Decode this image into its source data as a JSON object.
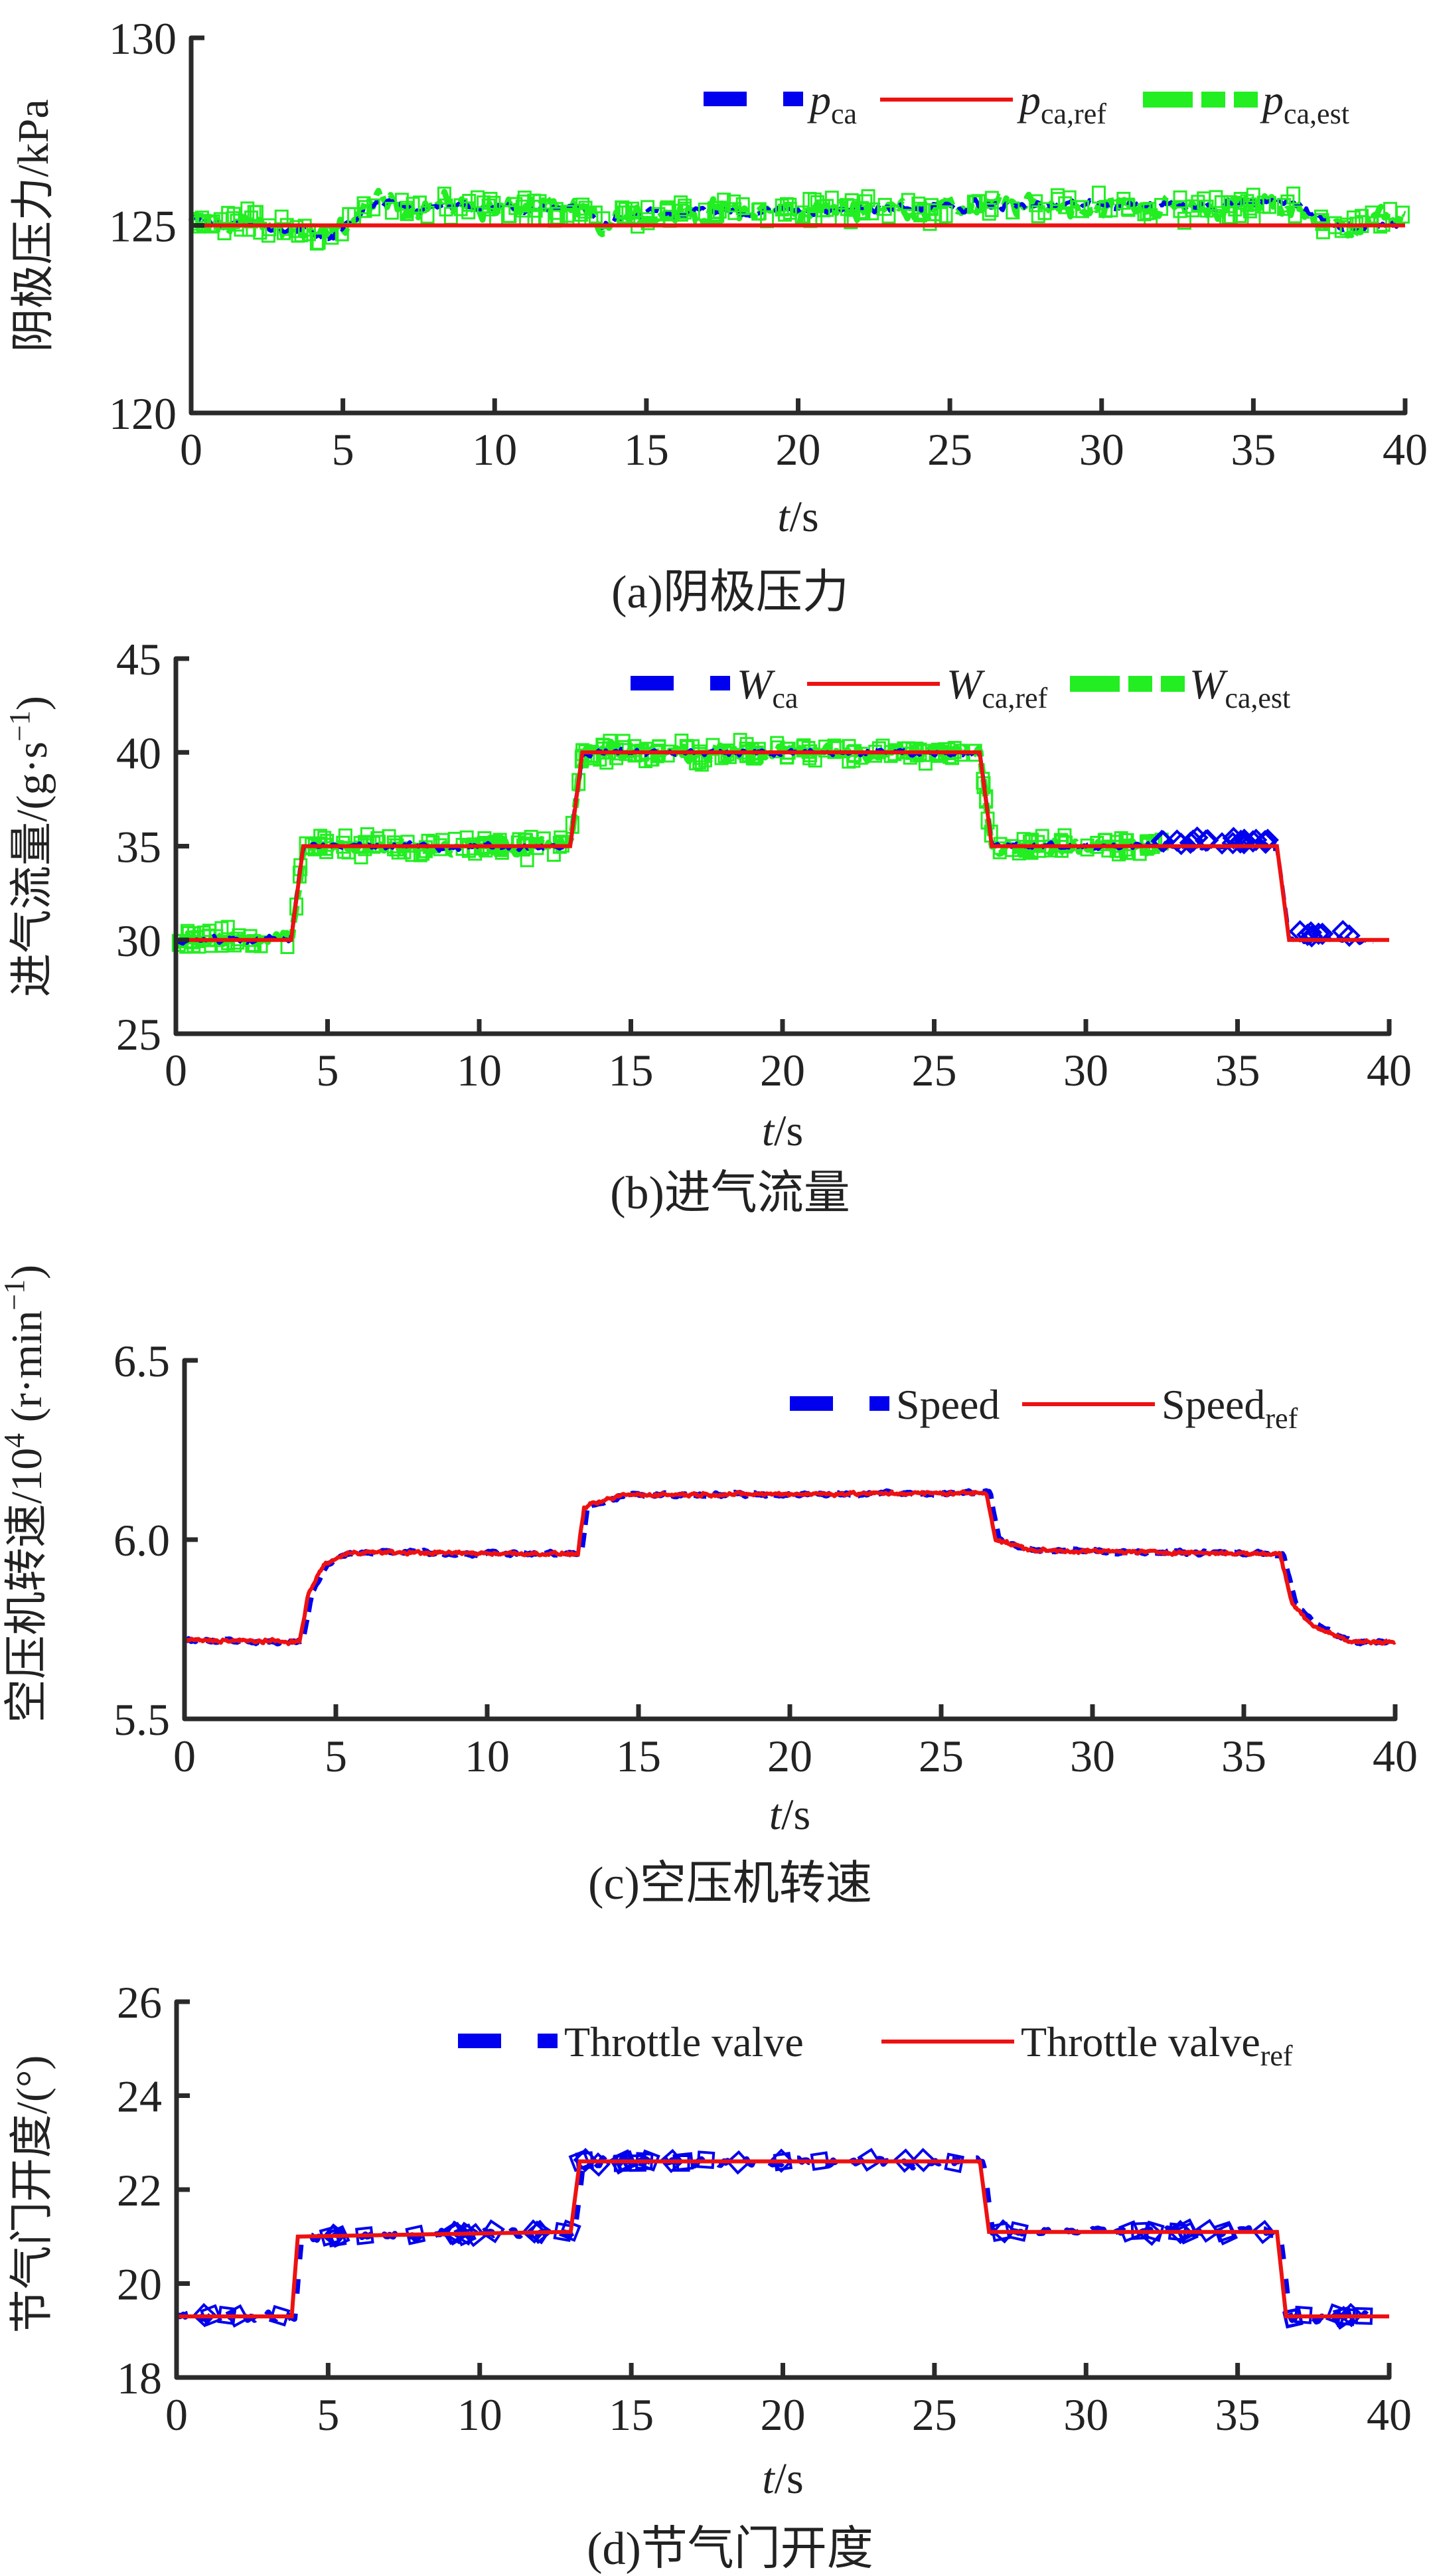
{
  "colors": {
    "measured": "#0000ee",
    "reference": "#ee1111",
    "estimated": "#22ee22",
    "axis": "#2a2a2a"
  },
  "chart_data": [
    {
      "type": "line",
      "id": "a",
      "caption": "(a)阴极压力",
      "ylabel": "阴极压力/kPa",
      "xlabel_italic": "t",
      "xlabel_rest": "/s",
      "xlim": [
        0,
        40
      ],
      "ylim": [
        120,
        130
      ],
      "xticks": [
        "0",
        "5",
        "10",
        "15",
        "20",
        "25",
        "30",
        "35",
        "40"
      ],
      "yticks": [
        "120",
        "125",
        "130"
      ],
      "yticks_values": [
        120,
        125,
        130
      ],
      "legend_position": "top-right",
      "legend": [
        {
          "key": "measured",
          "style": "dashed-thick",
          "main": "p",
          "sub": "ca",
          "italic": true
        },
        {
          "key": "reference",
          "style": "solid",
          "main": "p",
          "sub": "ca,ref",
          "italic": true
        },
        {
          "key": "estimated",
          "style": "dashed-thick",
          "main": "p",
          "sub": "ca,est",
          "italic": true
        }
      ],
      "reference_steps": [
        [
          0,
          125
        ],
        [
          40,
          125
        ]
      ],
      "measured_levels": [
        [
          0,
          125.1
        ],
        [
          3.5,
          124.9
        ],
        [
          4.5,
          124.6
        ],
        [
          6,
          125.5
        ],
        [
          13,
          125.4
        ],
        [
          13.5,
          124.9
        ],
        [
          14,
          125.3
        ],
        [
          26,
          125.5
        ],
        [
          36.5,
          125.6
        ],
        [
          37.5,
          125.0
        ],
        [
          40,
          125.0
        ]
      ],
      "estimated_levels": [
        [
          0,
          125.1
        ],
        [
          3.5,
          124.9
        ],
        [
          4.5,
          124.6
        ],
        [
          6,
          125.6
        ],
        [
          13,
          125.4
        ],
        [
          13.5,
          124.9
        ],
        [
          14,
          125.3
        ],
        [
          26,
          125.5
        ],
        [
          36.5,
          125.5
        ],
        [
          37.5,
          124.9
        ],
        [
          40,
          125.3
        ]
      ],
      "noise": {
        "measured": 0.25,
        "estimated": 0.5
      }
    },
    {
      "type": "line",
      "id": "b",
      "caption": "(b)进气流量",
      "ylabel": "进气流量/(g·s",
      "ylabel_sup": "−1",
      "ylabel_close": ")",
      "xlabel_italic": "t",
      "xlabel_rest": "/s",
      "xlim": [
        0,
        40
      ],
      "ylim": [
        25,
        45
      ],
      "xticks": [
        "0",
        "5",
        "10",
        "15",
        "20",
        "25",
        "30",
        "35",
        "40"
      ],
      "yticks": [
        "25",
        "30",
        "35",
        "40",
        "45"
      ],
      "yticks_values": [
        25,
        30,
        35,
        40,
        45
      ],
      "legend_position": "top-right",
      "legend": [
        {
          "key": "measured",
          "style": "dashed-thick",
          "main": "W",
          "sub": "ca",
          "italic": true
        },
        {
          "key": "reference",
          "style": "solid",
          "main": "W",
          "sub": "ca,ref",
          "italic": true
        },
        {
          "key": "estimated",
          "style": "dashed-thick",
          "main": "W",
          "sub": "ca,est",
          "italic": true
        }
      ],
      "reference_steps": [
        [
          0,
          30
        ],
        [
          3.8,
          30
        ],
        [
          4.2,
          35
        ],
        [
          13.0,
          35
        ],
        [
          13.4,
          40
        ],
        [
          26.5,
          40
        ],
        [
          26.9,
          35
        ],
        [
          36.3,
          35
        ],
        [
          36.7,
          30
        ],
        [
          40,
          30
        ]
      ],
      "measured_range": [
        0,
        39.5
      ],
      "estimated_range": [
        0,
        32.5
      ],
      "noise": {
        "measured": 0.35,
        "estimated": 0.7
      }
    },
    {
      "type": "line",
      "id": "c",
      "caption": "(c)空压机转速",
      "ylabel": "空压机转速/10",
      "ylabel_sup": "4",
      "ylabel_rest": " (r·min",
      "ylabel_sup2": "−1",
      "ylabel_close": ")",
      "xlabel_italic": "t",
      "xlabel_rest": "/s",
      "xlim": [
        0,
        40
      ],
      "ylim": [
        5.5,
        6.5
      ],
      "xticks": [
        "0",
        "5",
        "10",
        "15",
        "20",
        "25",
        "30",
        "35",
        "40"
      ],
      "yticks": [
        "5.5",
        "6.0",
        "6.5"
      ],
      "yticks_values": [
        5.5,
        6.0,
        6.5
      ],
      "legend_position": "top-right",
      "legend": [
        {
          "key": "measured",
          "style": "dashed-thick",
          "main": "Speed",
          "sub": "",
          "italic": false
        },
        {
          "key": "reference",
          "style": "solid",
          "main": "Speed",
          "sub": "ref",
          "italic": false
        }
      ],
      "reference_curve": [
        [
          0,
          5.72
        ],
        [
          3.8,
          5.715
        ],
        [
          4.1,
          5.85
        ],
        [
          4.6,
          5.93
        ],
        [
          5.5,
          5.965
        ],
        [
          13.0,
          5.96
        ],
        [
          13.2,
          6.09
        ],
        [
          14.5,
          6.125
        ],
        [
          26.5,
          6.13
        ],
        [
          26.8,
          6.0
        ],
        [
          28,
          5.97
        ],
        [
          36.2,
          5.96
        ],
        [
          36.6,
          5.82
        ],
        [
          37.3,
          5.76
        ],
        [
          38.5,
          5.715
        ],
        [
          40,
          5.715
        ]
      ],
      "noise": {
        "measured": 0.01,
        "reference": 0.006
      }
    },
    {
      "type": "line",
      "id": "d",
      "caption": "(d)节气门开度",
      "ylabel": "节气门开度/(°)",
      "xlabel_italic": "t",
      "xlabel_rest": "/s",
      "xlim": [
        0,
        40
      ],
      "ylim": [
        18,
        26
      ],
      "xticks": [
        "0",
        "5",
        "10",
        "15",
        "20",
        "25",
        "30",
        "35",
        "40"
      ],
      "yticks": [
        "18",
        "20",
        "22",
        "24",
        "26"
      ],
      "yticks_values": [
        18,
        20,
        22,
        24,
        26
      ],
      "legend_position": "top-right",
      "legend": [
        {
          "key": "measured",
          "style": "dashed-thick",
          "main": "Throttle valve",
          "sub": "",
          "italic": false
        },
        {
          "key": "reference",
          "style": "solid",
          "main": "Throttle valve",
          "sub": "ref",
          "italic": false
        }
      ],
      "reference_steps": [
        [
          0,
          19.3
        ],
        [
          3.8,
          19.3
        ],
        [
          4.0,
          21.0
        ],
        [
          13.0,
          21.1
        ],
        [
          13.3,
          22.6
        ],
        [
          26.5,
          22.6
        ],
        [
          26.8,
          21.1
        ],
        [
          36.3,
          21.1
        ],
        [
          36.6,
          19.3
        ],
        [
          40,
          19.3
        ]
      ],
      "measured_range": [
        0,
        39.3
      ],
      "noise": {
        "measured": 0.1
      }
    }
  ]
}
